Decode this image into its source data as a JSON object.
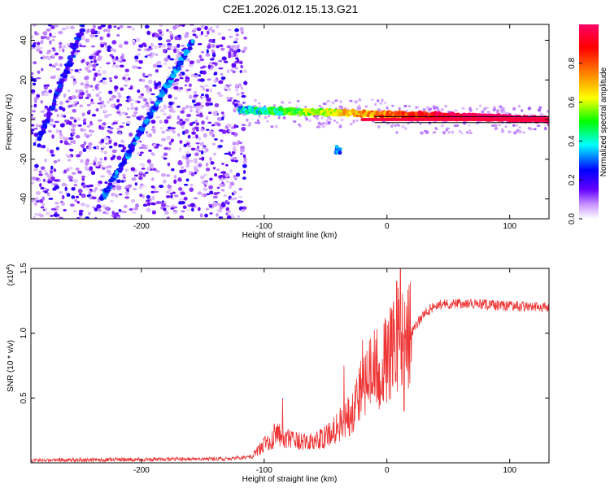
{
  "chart_data": [
    {
      "type": "heatmap",
      "title": "C2E1.2026.012.15.13.G21",
      "xlabel": "Height of straight line (km)",
      "ylabel": "Frequency (Hz)",
      "xlim": [
        -290,
        132
      ],
      "ylim": [
        -50,
        48
      ],
      "xticks": [
        -200,
        -100,
        0,
        100
      ],
      "xtick_labels": [
        "-200",
        "-100",
        "0",
        "100"
      ],
      "yticks": [
        -40,
        -20,
        0,
        20,
        40
      ],
      "ytick_labels": [
        "-40",
        "-20",
        "0",
        "20",
        "40"
      ],
      "colorbar": {
        "label": "Normalized spectral amplitude",
        "range": [
          0,
          1
        ],
        "ticks": [
          0.0,
          0.2,
          0.4,
          0.6,
          0.8
        ],
        "tick_labels": [
          "0.0",
          "0.2",
          "0.4",
          "0.6",
          "0.8"
        ],
        "colormap": "rainbow (white-purple-blue-cyan-green-yellow-orange-red-magenta)"
      },
      "features": [
        {
          "name": "steep-streak",
          "x": [
            -283,
            -247
          ],
          "y": [
            -10,
            48
          ],
          "amplitude": 0.25
        },
        {
          "name": "diagonal-streak",
          "x": [
            -232,
            -158
          ],
          "y": [
            -40,
            40
          ],
          "amplitude": 0.3
        },
        {
          "name": "carrier-line",
          "x": [
            -120,
            132
          ],
          "y": [
            5,
            0
          ],
          "amplitude": 0.9
        },
        {
          "name": "low-blob",
          "x": [
            -40
          ],
          "y": [
            -15
          ],
          "amplitude": 0.3
        }
      ]
    },
    {
      "type": "line",
      "xlabel": "Height of straight line (km)",
      "ylabel": "SNR (10 * v/v)",
      "multiplier_label": "(x10",
      "multiplier_exp": "4",
      "xlim": [
        -290,
        132
      ],
      "ylim": [
        0,
        1.5
      ],
      "xticks": [
        -200,
        -100,
        0,
        100
      ],
      "xtick_labels": [
        "-200",
        "-100",
        "0",
        "100"
      ],
      "yticks": [
        0.5,
        1.0,
        1.5
      ],
      "ytick_labels": [
        "0.5",
        "1.0",
        "1.5"
      ],
      "color": "#ee3333",
      "envelope": {
        "x": [
          -290,
          -130,
          -110,
          -100,
          -90,
          -80,
          -70,
          -60,
          -50,
          -40,
          -30,
          -20,
          -10,
          0,
          5,
          10,
          15,
          20,
          30,
          40,
          60,
          80,
          100,
          132
        ],
        "y": [
          0.02,
          0.03,
          0.05,
          0.14,
          0.22,
          0.18,
          0.16,
          0.16,
          0.2,
          0.28,
          0.38,
          0.6,
          0.72,
          0.78,
          0.9,
          0.95,
          0.9,
          1.0,
          1.15,
          1.22,
          1.23,
          1.22,
          1.21,
          1.2
        ]
      },
      "spikes": [
        {
          "x": 11,
          "y": 1.5
        },
        {
          "x": 8,
          "y": 1.4
        },
        {
          "x": -20,
          "y": 0.95
        },
        {
          "x": -35,
          "y": 0.75
        },
        {
          "x": -85,
          "y": 0.5
        },
        {
          "x": 14,
          "y": 0.4
        }
      ]
    }
  ]
}
